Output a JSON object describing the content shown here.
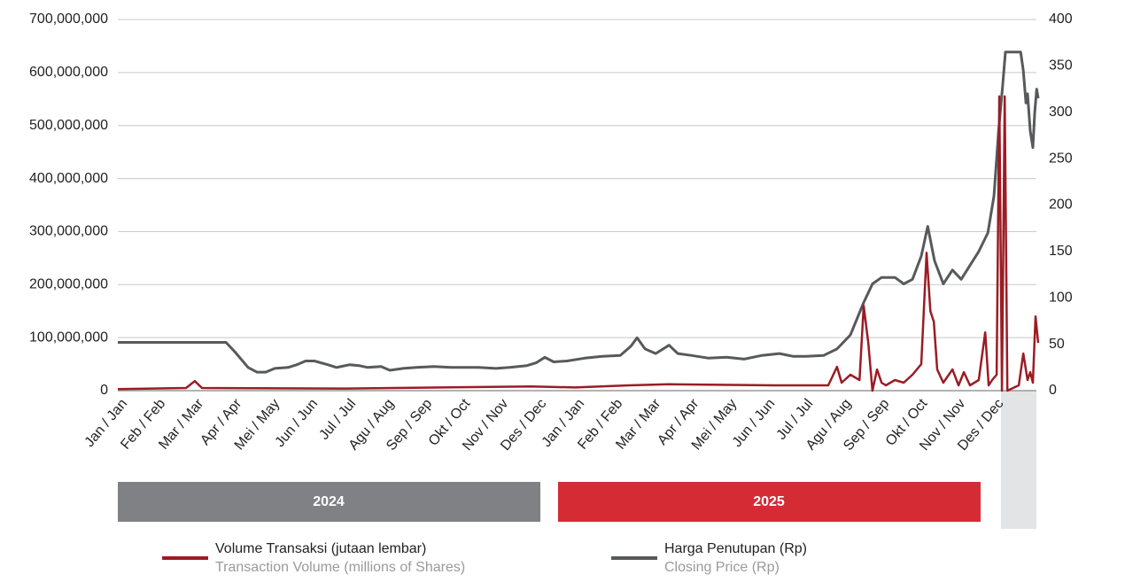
{
  "chart_data": {
    "type": "line",
    "categories": [
      "Jan / Jan",
      "Feb / Feb",
      "Mar / Mar",
      "Apr / Apr",
      "Mei / May",
      "Jun / Jun",
      "Jul / Jul",
      "Agu / Aug",
      "Sep / Sep",
      "Okt / Oct",
      "Nov / Nov",
      "Des / Dec",
      "Jan / Jan",
      "Feb / Feb",
      "Mar / Mar",
      "Apr / Apr",
      "Mei / May",
      "Jun / Jun",
      "Jul / Jul",
      "Agu / Aug",
      "Sep / Sep",
      "Okt / Oct",
      "Nov / Nov",
      "Des / Dec"
    ],
    "year_bands": [
      "2024",
      "2025"
    ],
    "xlim": [
      0,
      24.16
    ],
    "ylim": [
      0,
      700000000
    ],
    "yticks": [
      0,
      {
        "value": 100000000,
        "label": "100,000,000"
      },
      {
        "value": 200000000,
        "label": "200,000,000"
      },
      {
        "value": 300000000,
        "label": "300,000,000"
      },
      {
        "value": 400000000,
        "label": "400,000,000"
      },
      {
        "value": 500000000,
        "label": "500,000,000"
      },
      {
        "value": 600000000,
        "label": "600,000,000"
      },
      {
        "value": 700000000,
        "label": "700,000,000"
      }
    ],
    "y2lim": [
      0,
      400
    ],
    "y2ticks": [
      0,
      50,
      100,
      150,
      200,
      250,
      300,
      350,
      400
    ],
    "grid": true,
    "series": [
      {
        "name": "Volume Transaksi (jutaan lembar)",
        "legend_subtitle": "Transaction Volume (millions of Shares)",
        "color": "#9b1c24",
        "axis": "y",
        "x": [
          0,
          1.79,
          2.02,
          2.21,
          6.0,
          10.86,
          12.0,
          13.42,
          14.47,
          17.26,
          18.65,
          18.88,
          19.0,
          19.23,
          19.47,
          19.58,
          19.7,
          19.81,
          19.93,
          20.05,
          20.16,
          20.4,
          20.63,
          20.86,
          21.09,
          21.23,
          21.33,
          21.42,
          21.51,
          21.67,
          21.91,
          22.07,
          22.21,
          22.37,
          22.6,
          22.77,
          22.86,
          22.95,
          23.07,
          23.14,
          23.21,
          23.28,
          23.35,
          23.65,
          23.77,
          23.88,
          23.95,
          24.02,
          24.09,
          24.16
        ],
        "values": [
          3000000,
          5000000,
          18000000,
          5000000,
          4000000,
          8000000,
          6000000,
          10000000,
          12000000,
          10000000,
          10000000,
          45000000,
          15000000,
          30000000,
          20000000,
          160000000,
          90000000,
          0,
          40000000,
          15000000,
          10000000,
          20000000,
          15000000,
          30000000,
          50000000,
          260000000,
          150000000,
          130000000,
          40000000,
          15000000,
          40000000,
          10000000,
          35000000,
          10000000,
          20000000,
          110000000,
          10000000,
          20000000,
          30000000,
          555000000,
          0,
          555000000,
          0,
          10000000,
          70000000,
          20000000,
          35000000,
          15000000,
          140000000,
          90000000
        ]
      },
      {
        "name": "Harga Penutupan (Rp)",
        "legend_subtitle": "Closing Price (Rp)",
        "color": "#58595b",
        "axis": "y2",
        "x": [
          0,
          2.84,
          3.07,
          3.42,
          3.65,
          3.88,
          4.12,
          4.47,
          4.7,
          4.93,
          5.16,
          5.51,
          5.74,
          6.09,
          6.33,
          6.56,
          6.91,
          7.14,
          7.49,
          7.84,
          8.3,
          8.77,
          9.47,
          9.93,
          10.28,
          10.74,
          10.98,
          11.21,
          11.44,
          11.79,
          12.26,
          12.72,
          13.19,
          13.47,
          13.63,
          13.84,
          14.12,
          14.47,
          14.7,
          15.05,
          15.51,
          15.98,
          16.44,
          16.91,
          17.37,
          17.72,
          18.07,
          18.53,
          18.88,
          19.23,
          19.58,
          19.81,
          20.05,
          20.4,
          20.63,
          20.86,
          21.09,
          21.26,
          21.44,
          21.67,
          21.91,
          22.14,
          22.37,
          22.6,
          22.84,
          23.0,
          23.12,
          23.23,
          23.3,
          23.7,
          23.77,
          23.84,
          23.88,
          23.95,
          24.02,
          24.07,
          24.12,
          24.16
        ],
        "values": [
          52,
          52,
          42,
          25,
          20,
          20,
          24,
          25,
          28,
          32,
          32,
          28,
          25,
          28,
          27,
          25,
          26,
          22,
          24,
          25,
          26,
          25,
          25,
          24,
          25,
          27,
          30,
          36,
          31,
          32,
          35,
          37,
          38,
          48,
          57,
          45,
          40,
          49,
          40,
          38,
          35,
          36,
          34,
          38,
          40,
          37,
          37,
          38,
          45,
          60,
          95,
          115,
          122,
          122,
          115,
          120,
          145,
          177,
          140,
          115,
          130,
          120,
          135,
          150,
          170,
          210,
          280,
          330,
          365,
          365,
          345,
          310,
          320,
          280,
          262,
          300,
          325,
          315
        ]
      }
    ]
  }
}
